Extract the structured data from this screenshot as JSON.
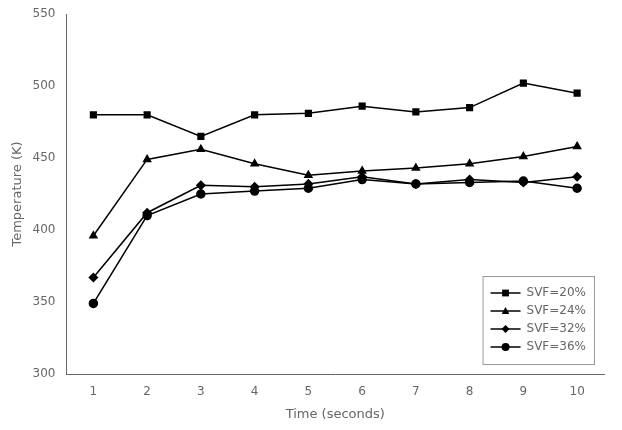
{
  "chart_data": {
    "type": "line",
    "x": [
      1,
      2,
      3,
      4,
      5,
      6,
      7,
      8,
      9,
      10
    ],
    "series": [
      {
        "name": "SVF=20%",
        "color": "#000000",
        "marker": "square",
        "values": [
          480,
          480,
          465,
          480,
          481,
          486,
          482,
          485,
          502,
          495
        ]
      },
      {
        "name": "SVF=24%",
        "color": "#000000",
        "marker": "triangle",
        "values": [
          396,
          449,
          456,
          446,
          438,
          441,
          443,
          446,
          451,
          458
        ]
      },
      {
        "name": "SVF=32%",
        "color": "#000000",
        "marker": "diamond",
        "values": [
          367,
          412,
          431,
          430,
          432,
          437,
          432,
          435,
          433,
          437
        ]
      },
      {
        "name": "SVF=36%",
        "color": "#000000",
        "marker": "circle",
        "values": [
          349,
          410,
          425,
          427,
          429,
          435,
          432,
          433,
          434,
          429
        ]
      }
    ],
    "x_label": "Time (seconds)",
    "y_label": "Temperature (K)",
    "xlim": [
      0.5,
      10.5
    ],
    "xticks": [
      1,
      2,
      3,
      4,
      5,
      6,
      7,
      8,
      9,
      10
    ],
    "ylim": [
      300,
      550
    ],
    "yticks": [
      300,
      350,
      400,
      450,
      500,
      550
    ],
    "grid": false,
    "legend": "lower right"
  }
}
